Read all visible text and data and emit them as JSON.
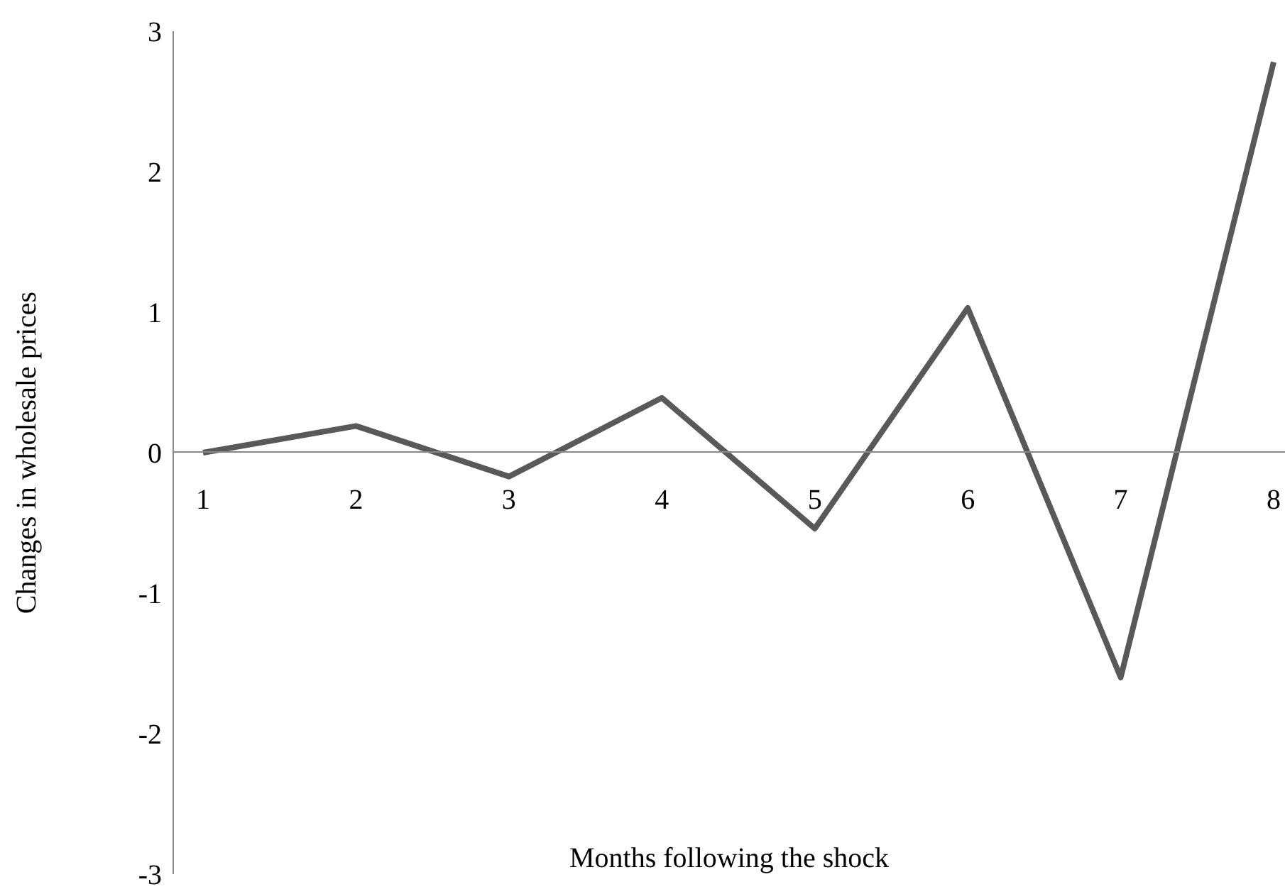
{
  "chart_data": {
    "type": "line",
    "xlabel": "Months following the shock",
    "ylabel": "Changes in wholesale prices",
    "categories": [
      "1",
      "2",
      "3",
      "4",
      "5",
      "6",
      "7",
      "8"
    ],
    "series": [
      {
        "color": "#595959",
        "values": [
          0,
          0.19,
          -0.17,
          0.39,
          -0.54,
          1.03,
          -1.6,
          2.78
        ]
      }
    ],
    "ylim": [
      -3,
      3
    ],
    "yticks": [
      -3,
      -2,
      -1,
      0,
      1,
      2,
      3
    ],
    "grid": false,
    "legend": false,
    "marker": "none",
    "line_style": "solid"
  }
}
